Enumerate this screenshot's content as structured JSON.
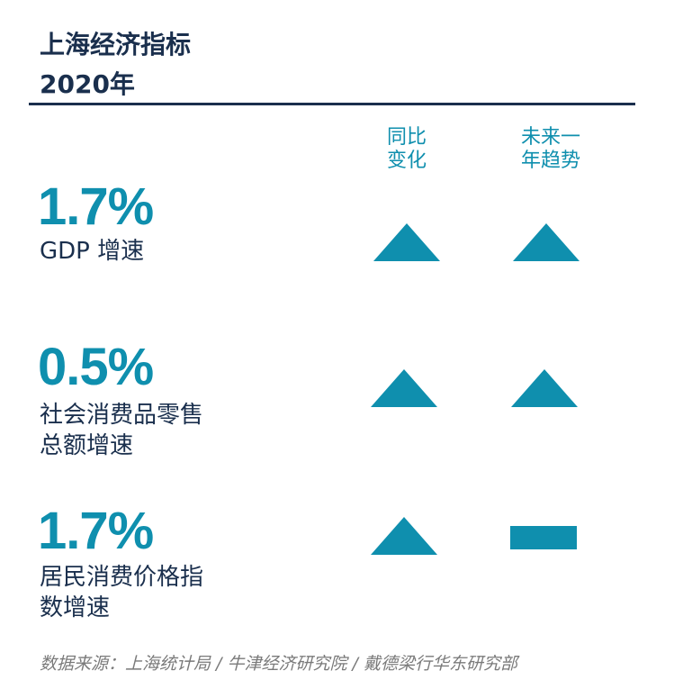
{
  "title": "上海经济指标",
  "subtitle": "2020年",
  "column_headers": {
    "yoy": "同比\n变化",
    "trend": "未来一\n年趋势"
  },
  "indicators": [
    {
      "value": "1.7%",
      "label": "GDP 增速",
      "yoy_icon": "up-triangle-icon",
      "trend_icon": "up-triangle-icon"
    },
    {
      "value": "0.5%",
      "label": "社会消费品零售\n总额增速",
      "yoy_icon": "up-triangle-icon",
      "trend_icon": "up-triangle-icon"
    },
    {
      "value": "1.7%",
      "label": "居民消费价格指\n数增速",
      "yoy_icon": "up-triangle-icon",
      "trend_icon": "flat-bar-icon"
    }
  ],
  "source": "数据来源：上海统计局 / 牛津经济研究院 / 戴德梁行华东研究部",
  "colors": {
    "accent": "#0f8fae",
    "navy": "#1a2f4d",
    "source_gray": "#7a7a7a"
  }
}
